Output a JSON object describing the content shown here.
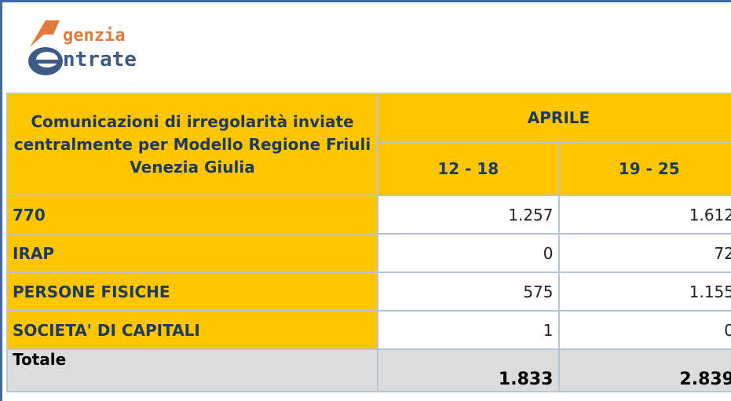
{
  "header": {
    "logo": {
      "top": "genzia",
      "bottom": "ntrate"
    }
  },
  "table": {
    "corner": "Comunicazioni di irregolarità inviate centralmente per Modello Regione Friuli Venezia Giulia",
    "month": "APRILE",
    "columns": [
      "12 - 18",
      "19 - 25"
    ],
    "rows": [
      [
        "770",
        "1.257",
        "1.612"
      ],
      [
        "IRAP",
        "0",
        "72"
      ],
      [
        "PERSONE FISICHE",
        "575",
        "1.155"
      ],
      [
        "SOCIETA' DI CAPITALI",
        "1",
        "0"
      ]
    ],
    "total": [
      "Totale",
      "1.833",
      "2.839"
    ]
  }
}
